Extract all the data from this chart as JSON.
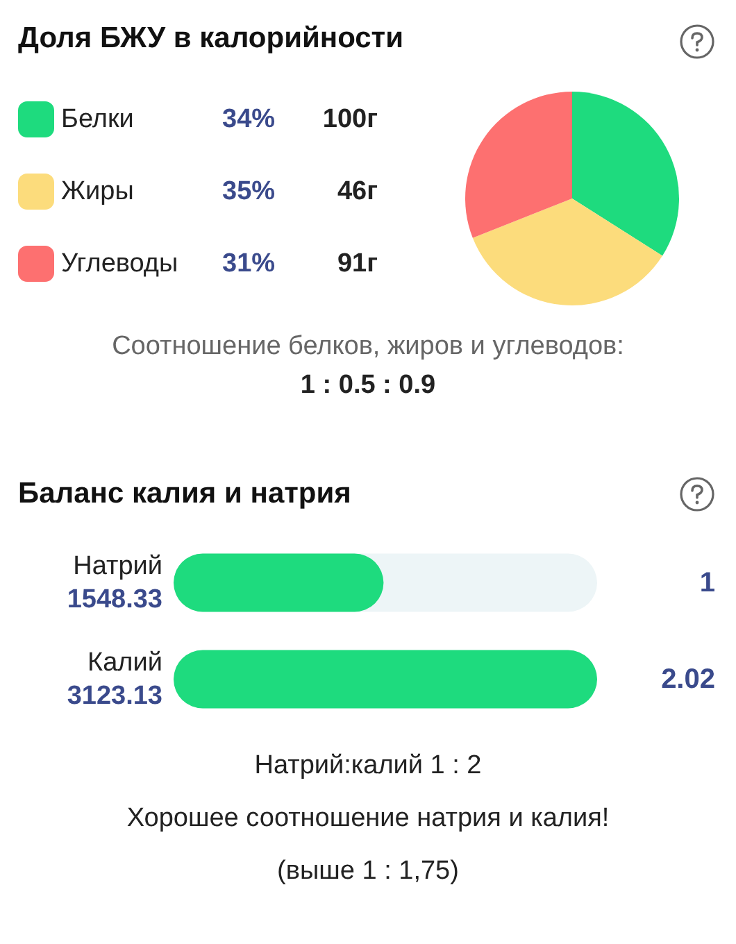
{
  "chart_data": [
    {
      "type": "pie",
      "title": "Доля БЖУ в калорийности",
      "categories": [
        "Белки",
        "Жиры",
        "Углеводы"
      ],
      "values": [
        34,
        35,
        31
      ],
      "value_labels": [
        "34%",
        "35%",
        "31%"
      ],
      "colors": [
        "#1edb7e",
        "#fcdc7c",
        "#fd7070"
      ],
      "legend": "left",
      "annotations": [
        "100г",
        "46г",
        "91г",
        "Соотношение белков, жиров и углеводов:",
        "1 : 0.5 : 0.9"
      ]
    },
    {
      "type": "bar",
      "orientation": "horizontal",
      "title": "Баланс калия и натрия",
      "categories": [
        "Натрий",
        "Калий"
      ],
      "values": [
        1548.33,
        3123.13
      ],
      "color": "#1edb7e",
      "data_labels": true,
      "annotations": [
        "1",
        "2.02",
        "Натрий:калий 1 : 2",
        "Хорошее соотношение натрия и калия!",
        "(выше 1 : 1,75)"
      ]
    }
  ]
}
